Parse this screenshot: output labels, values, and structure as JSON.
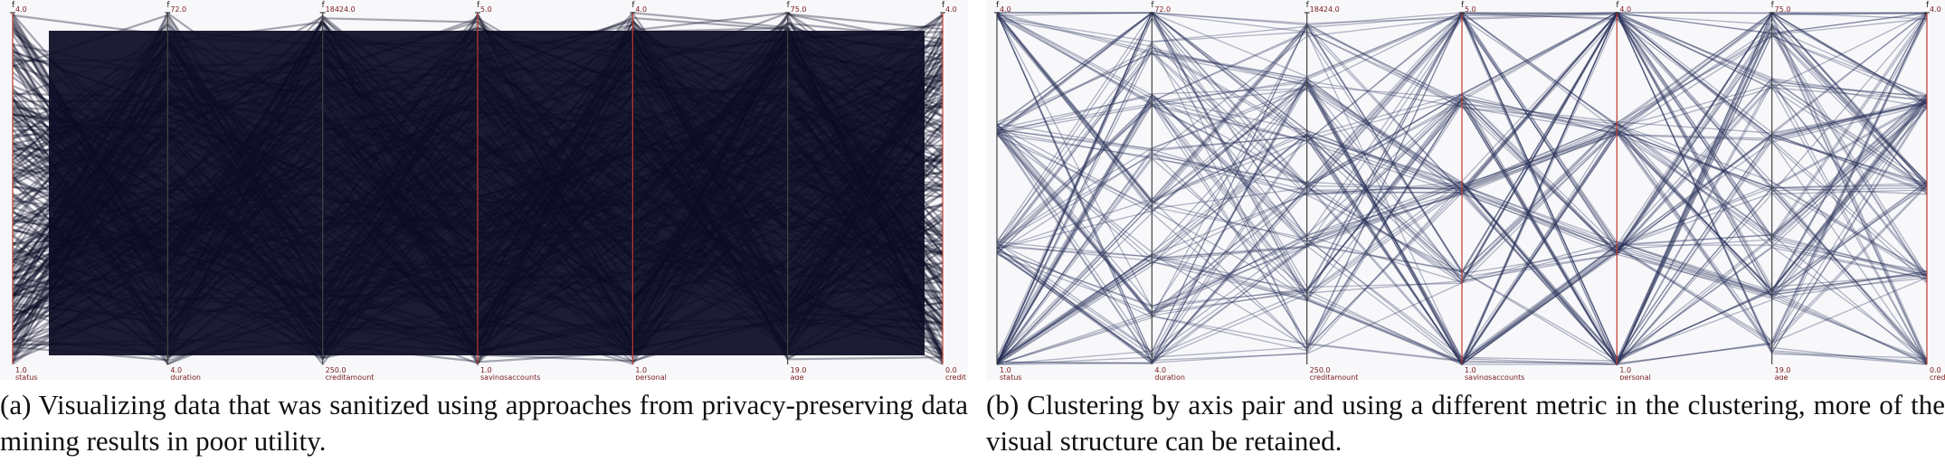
{
  "chart_data": [
    {
      "type": "parallel_coordinates",
      "panel": "a",
      "axes": [
        {
          "name": "status",
          "max": "4.0",
          "min": "1.0"
        },
        {
          "name": "duration",
          "max": "72.0",
          "min": "4.0"
        },
        {
          "name": "creditamount",
          "max": "18424.0",
          "min": "250.0"
        },
        {
          "name": "savingsaccounts",
          "max": "5.0",
          "min": "1.0"
        },
        {
          "name": "personal",
          "max": "4.0",
          "min": "1.0"
        },
        {
          "name": "age",
          "max": "75.0",
          "min": "19.0"
        },
        {
          "name": "credit",
          "max": "4.0",
          "min": "0.0"
        }
      ],
      "axis_colors": [
        "#c0392b",
        "#444444",
        "#444444",
        "#c0392b",
        "#c0392b",
        "#444444",
        "#c0392b"
      ],
      "line_color": "#0b0b24",
      "rendering": "dense"
    },
    {
      "type": "parallel_coordinates",
      "panel": "b",
      "axes": [
        {
          "name": "status",
          "max": "4.0",
          "min": "1.0"
        },
        {
          "name": "duration",
          "max": "72.0",
          "min": "4.0"
        },
        {
          "name": "creditamount",
          "max": "18424.0",
          "min": "250.0"
        },
        {
          "name": "savingsaccounts",
          "max": "5.0",
          "min": "1.0"
        },
        {
          "name": "personal",
          "max": "4.0",
          "min": "1.0"
        },
        {
          "name": "age",
          "max": "75.0",
          "min": "19.0"
        },
        {
          "name": "credit",
          "max": "4.0",
          "min": "0.0"
        }
      ],
      "axis_colors": [
        "#444444",
        "#444444",
        "#444444",
        "#c0392b",
        "#c0392b",
        "#444444",
        "#c0392b"
      ],
      "line_color": "#28305a",
      "rendering": "clustered"
    }
  ],
  "captions": {
    "a": "(a) Visualizing data that was sanitized using approaches from privacy-preserving data mining results in poor utility.",
    "b": "(b) Clustering by axis pair and using a different metric in the clustering, more of the visual structure can be retained."
  }
}
